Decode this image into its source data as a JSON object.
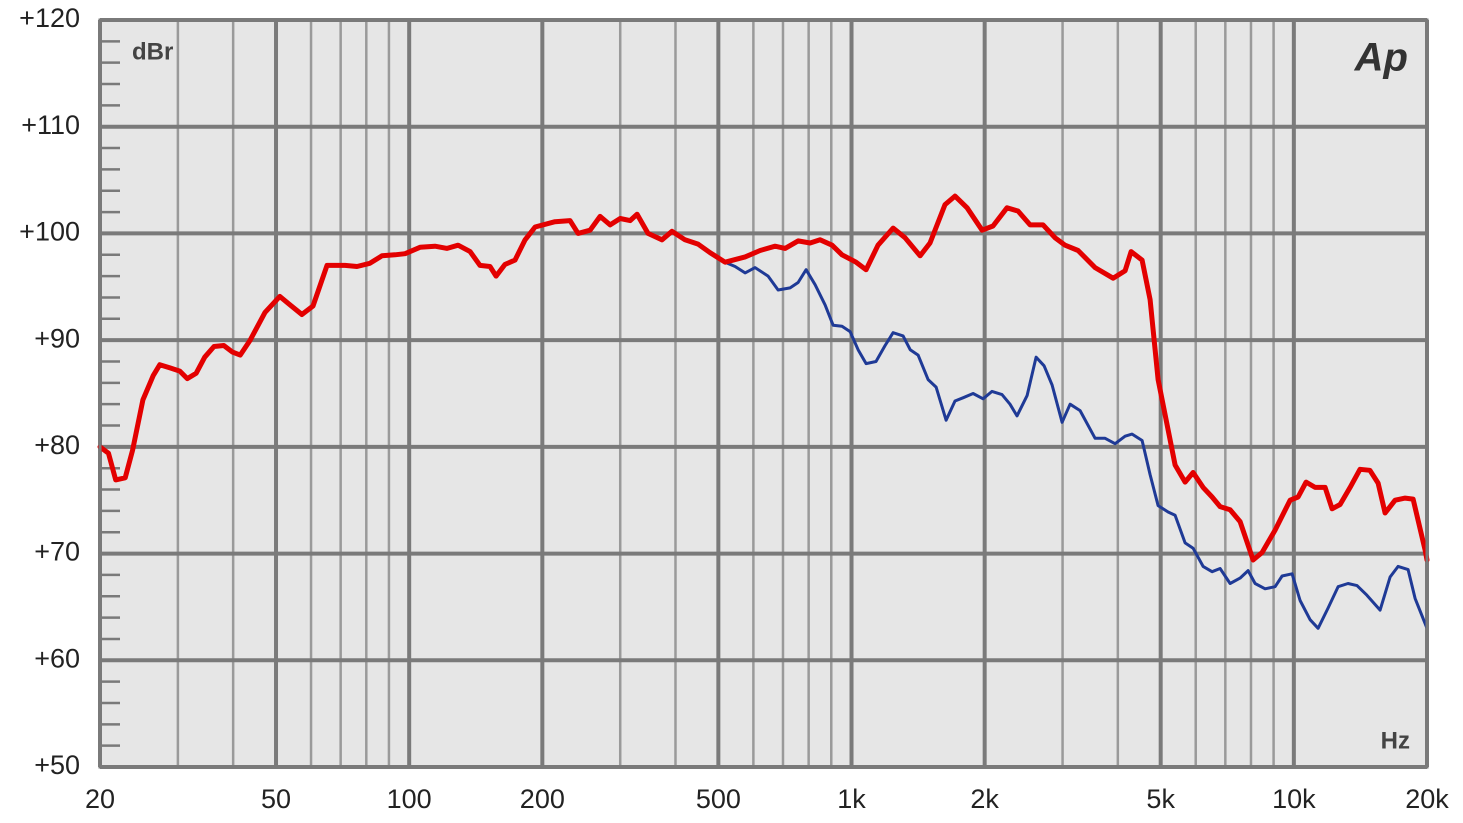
{
  "chart_data": {
    "type": "line",
    "y_unit": "dBr",
    "x_unit": "Hz",
    "logo": "Ap",
    "xscale": "log",
    "xlim": [
      20,
      20000
    ],
    "ylim": [
      50,
      120
    ],
    "grid": true,
    "xticks": [
      20,
      50,
      100,
      200,
      500,
      {
        "value": 1000,
        "label": "1k"
      },
      {
        "value": 2000,
        "label": "2k"
      },
      {
        "value": 5000,
        "label": "5k"
      },
      {
        "value": 10000,
        "label": "10k"
      },
      {
        "value": 20000,
        "label": "20k"
      }
    ],
    "xminor": [
      30,
      40,
      60,
      70,
      80,
      90,
      300,
      400,
      600,
      700,
      800,
      900,
      3000,
      4000,
      6000,
      7000,
      8000,
      9000
    ],
    "yticks": [
      {
        "value": 50,
        "label": "+50"
      },
      {
        "value": 60,
        "label": "+60"
      },
      {
        "value": 70,
        "label": "+70"
      },
      {
        "value": 80,
        "label": "+80"
      },
      {
        "value": 90,
        "label": "+90"
      },
      {
        "value": 100,
        "label": "+100"
      },
      {
        "value": 110,
        "label": "+110"
      },
      {
        "value": 120,
        "label": "+120"
      }
    ],
    "yminor": [
      52,
      54,
      56,
      58,
      62,
      64,
      66,
      68,
      72,
      74,
      76,
      78,
      82,
      84,
      86,
      88,
      92,
      94,
      96,
      98,
      102,
      104,
      106,
      108,
      112,
      114,
      116,
      118
    ],
    "series": [
      {
        "color": "#1f3a96",
        "width": 3,
        "x": [
          517.8,
          545.5,
          574.6,
          605.3,
          647.7,
          682.3,
          726.3,
          757.2,
          789.4,
          827.3,
          871.4,
          908.5,
          951.9,
          992.5,
          1035,
          1079,
          1136,
          1191,
          1242,
          1308,
          1357,
          1414,
          1490,
          1553,
          1636,
          1714,
          1787,
          1883,
          1984,
          2078,
          2189,
          2282,
          2367,
          2494,
          2614,
          2725,
          2841,
          2993,
          3120,
          3286,
          3553,
          3743,
          3944,
          4155,
          4309,
          4539,
          4731,
          4932,
          5196,
          5389,
          5677,
          5919,
          6236,
          6535,
          6813,
          7177,
          7561,
          7883,
          8175,
          8611,
          9071,
          9408,
          9909,
          10330,
          10882,
          11346,
          11952,
          12591,
          13260,
          13896,
          14630,
          15669,
          16506,
          17207,
          18126,
          18797,
          20000
        ],
        "values": [
          97.3,
          96.9,
          96.3,
          96.8,
          96.0,
          94.7,
          94.9,
          95.4,
          96.6,
          95.2,
          93.3,
          91.4,
          91.3,
          90.8,
          89.1,
          87.8,
          88.0,
          89.5,
          90.7,
          90.4,
          89.1,
          88.6,
          86.3,
          85.6,
          82.5,
          84.3,
          84.6,
          85.0,
          84.5,
          85.2,
          84.9,
          84.0,
          82.9,
          84.8,
          88.4,
          87.6,
          85.8,
          82.3,
          84.0,
          83.4,
          80.8,
          80.8,
          80.3,
          81.0,
          81.2,
          80.6,
          77.4,
          74.5,
          73.9,
          73.6,
          71.0,
          70.5,
          68.8,
          68.3,
          68.6,
          67.2,
          67.7,
          68.4,
          67.2,
          66.7,
          66.9,
          67.9,
          68.1,
          65.6,
          63.8,
          63.0,
          64.9,
          66.9,
          67.2,
          67.0,
          66.1,
          64.7,
          67.8,
          68.8,
          68.5,
          65.8,
          63.0
        ]
      },
      {
        "color": "#e30000",
        "width": 5,
        "x": [
          20,
          20.9,
          21.7,
          22.8,
          23.7,
          25.0,
          26.4,
          27.3,
          28.8,
          30.3,
          31.5,
          33.0,
          34.5,
          36.2,
          38.1,
          39.8,
          41.5,
          43.7,
          47.2,
          51.0,
          53.8,
          57.2,
          60.6,
          65.2,
          71.6,
          76.2,
          81.5,
          86.8,
          92.9,
          97.9,
          105.8,
          114.4,
          121.8,
          129.0,
          137.3,
          144.6,
          152.3,
          157.2,
          164.7,
          173.5,
          182.8,
          192.6,
          213.6,
          231.0,
          240.9,
          256.4,
          270.2,
          284.6,
          299.9,
          315.8,
          327.5,
          346.7,
          372.9,
          392.8,
          420.4,
          449.9,
          478.8,
          517.8,
          574.6,
          621.3,
          671.7,
          707.6,
          757.2,
          805.9,
          849.0,
          903.8,
          951.9,
          1024,
          1079,
          1148,
          1242,
          1321,
          1429,
          1505,
          1627,
          1714,
          1825,
          1973,
          2089,
          2247,
          2379,
          2533,
          2711,
          2885,
          3040,
          3252,
          3553,
          3903,
          4155,
          4286,
          4539,
          4731,
          4932,
          5196,
          5389,
          5677,
          5919,
          6236,
          6535,
          6813,
          7177,
          7561,
          8090,
          8478,
          9071,
          9806,
          10223,
          10658,
          11170,
          11767,
          12204,
          12723,
          13399,
          14114,
          14860,
          15507,
          16082,
          16940,
          17845,
          18602,
          19810,
          20000
        ],
        "values": [
          80.0,
          79.4,
          76.9,
          77.1,
          79.7,
          84.4,
          86.7,
          87.7,
          87.4,
          87.1,
          86.4,
          86.9,
          88.4,
          89.4,
          89.5,
          88.9,
          88.6,
          90.0,
          92.6,
          94.1,
          93.3,
          92.4,
          93.2,
          97.0,
          97.0,
          96.9,
          97.2,
          97.9,
          98.0,
          98.1,
          98.7,
          98.8,
          98.6,
          98.9,
          98.3,
          97.0,
          96.9,
          96.0,
          97.1,
          97.5,
          99.4,
          100.6,
          101.1,
          101.2,
          100.0,
          100.3,
          101.6,
          100.8,
          101.4,
          101.2,
          101.8,
          100.0,
          99.4,
          100.2,
          99.4,
          99.0,
          98.2,
          97.3,
          97.8,
          98.4,
          98.8,
          98.6,
          99.3,
          99.1,
          99.4,
          98.9,
          98.0,
          97.3,
          96.6,
          98.9,
          100.5,
          99.6,
          97.9,
          99.1,
          102.7,
          103.5,
          102.4,
          100.3,
          100.7,
          102.4,
          102.1,
          100.8,
          100.8,
          99.6,
          98.9,
          98.4,
          96.8,
          95.8,
          96.5,
          98.3,
          97.5,
          93.8,
          86.3,
          81.6,
          78.3,
          76.7,
          77.6,
          76.2,
          75.3,
          74.4,
          74.1,
          73.0,
          69.4,
          70.1,
          72.2,
          75.0,
          75.3,
          76.7,
          76.2,
          76.2,
          74.2,
          74.6,
          76.2,
          77.9,
          77.8,
          76.6,
          73.8,
          75.0,
          75.2,
          75.1,
          70.3,
          69.4
        ]
      }
    ]
  }
}
